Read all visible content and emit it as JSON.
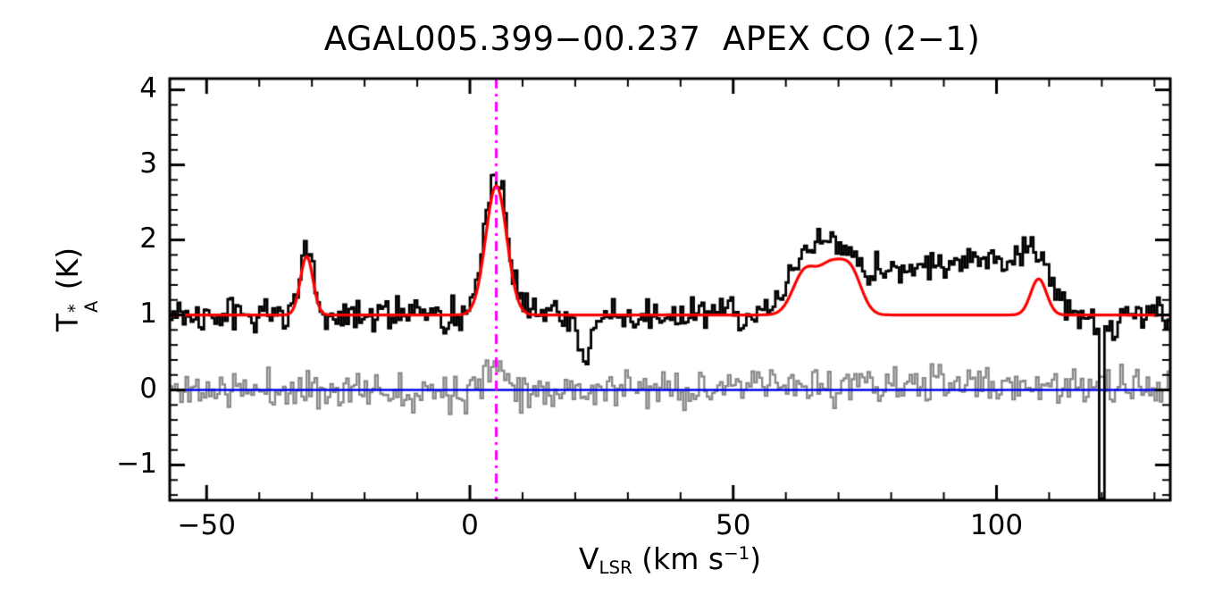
{
  "title": "AGAL005.399−00.237  APEX CO (2−1)",
  "chart_data": {
    "type": "line",
    "title": "AGAL005.399−00.237  APEX CO (2−1)",
    "xlabel": "V_LSR (km s−1)",
    "ylabel": "T_A* (K)",
    "xlabel_parts": {
      "main": "V",
      "sub": "LSR",
      "unit_pre": " (km s",
      "sup": "−1",
      "unit_post": ")"
    },
    "ylabel_parts": {
      "main": "T",
      "sup": "*",
      "sub": "A",
      "unit": " (K)"
    },
    "xlim": [
      -57,
      133
    ],
    "ylim": [
      -1.47,
      4.15
    ],
    "xticks": [
      {
        "value": -50,
        "label": "−50"
      },
      {
        "value": 0,
        "label": "0"
      },
      {
        "value": 50,
        "label": "50"
      },
      {
        "value": 100,
        "label": "100"
      }
    ],
    "yticks": [
      {
        "value": -1,
        "label": "−1"
      },
      {
        "value": 0,
        "label": "0"
      },
      {
        "value": 1,
        "label": "1"
      },
      {
        "value": 2,
        "label": "2"
      },
      {
        "value": 3,
        "label": "3"
      },
      {
        "value": 4,
        "label": "4"
      }
    ],
    "x_minor_step": 10,
    "y_minor_step": 0.2,
    "channel_width": 0.5,
    "noise_seed": 11,
    "grid": false,
    "legend": false,
    "colors": {
      "background": "#FFFFFF",
      "frame": "#000000",
      "observed": "#000000",
      "fit": "#FF0000",
      "residual": "#8A8A8A",
      "zero_line": "#0000EE",
      "marker": "#FF00FF"
    },
    "series": [
      {
        "name": "observed-spectrum",
        "type": "histogram",
        "color_key": "observed",
        "baseline": 1.0,
        "noise_sigma": 0.11,
        "components": [
          {
            "center": -31,
            "amp": 0.85,
            "sigma": 1.3
          },
          {
            "center": 5,
            "amp": 1.85,
            "sigma": 2.2
          },
          {
            "center": 22,
            "amp": -0.55,
            "sigma": 1.2
          },
          {
            "center": 63,
            "amp": 0.6,
            "sigma": 3.0
          },
          {
            "center": 69,
            "amp": 0.75,
            "sigma": 3.5
          },
          {
            "center": 78,
            "amp": 0.4,
            "sigma": 6.0
          },
          {
            "center": 90,
            "amp": 0.45,
            "sigma": 8.0
          },
          {
            "center": 100,
            "amp": 0.5,
            "sigma": 7.0
          },
          {
            "center": 107,
            "amp": 0.55,
            "sigma": 3.0
          },
          {
            "center": 120,
            "amp": -0.2,
            "sigma": 2.0
          }
        ],
        "spike": {
          "x": 120,
          "value": -1.45
        }
      },
      {
        "name": "model-fit",
        "type": "line",
        "color_key": "fit",
        "baseline": 1.0,
        "noise_sigma": 0,
        "components": [
          {
            "center": -31,
            "amp": 0.78,
            "sigma": 1.2
          },
          {
            "center": 5,
            "amp": 1.72,
            "sigma": 2.0
          },
          {
            "center": 63.5,
            "amp": 0.55,
            "sigma": 2.2
          },
          {
            "center": 68.5,
            "amp": 0.62,
            "sigma": 2.4
          },
          {
            "center": 72.5,
            "amp": 0.5,
            "sigma": 2.0
          },
          {
            "center": 108,
            "amp": 0.48,
            "sigma": 1.5
          }
        ]
      },
      {
        "name": "residuals",
        "type": "histogram",
        "color_key": "residual",
        "baseline": 0.0,
        "noise_sigma": 0.12,
        "components": [
          {
            "center": 5,
            "amp": 0.3,
            "sigma": 2.5
          },
          {
            "center": 85,
            "amp": 0.08,
            "sigma": 25
          }
        ]
      }
    ],
    "reference_lines": [
      {
        "name": "zero-baseline",
        "orientation": "horizontal",
        "value": 0,
        "style": "solid",
        "color_key": "zero_line"
      },
      {
        "name": "vlsr-marker",
        "orientation": "vertical",
        "value": 5,
        "style": "dash-dot",
        "color_key": "marker"
      }
    ]
  }
}
